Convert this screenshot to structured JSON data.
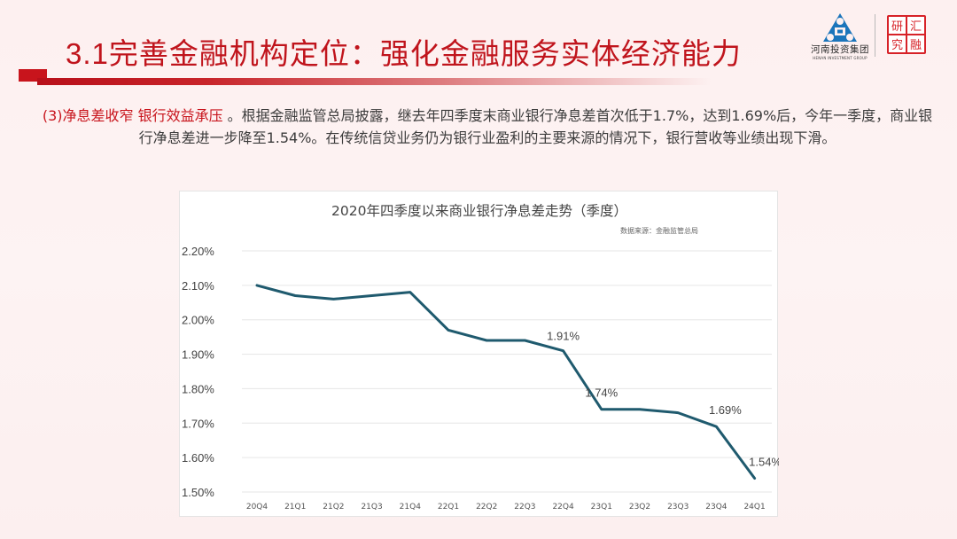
{
  "header": {
    "section_number": "3.1",
    "title": "完善金融机构定位：强化金融服务实体经济能力",
    "accent_color": "#c8141c"
  },
  "logos": {
    "company_cn": "河南投资集团",
    "company_en": "HENAN INVESTMENT GROUP",
    "seal_chars": [
      "研",
      "汇",
      "究",
      "融"
    ]
  },
  "paragraph": {
    "prefix": "(3)",
    "highlight": "净息差收窄 银行效益承压",
    "body": " 。根据金融监管总局披露，继去年四季度末商业银行净息差首次低于1.7%，达到1.69%后，今年一季度，商业银行净息差进一步降至1.54%。在传统信贷业务仍为银行业盈利的主要来源的情况下，银行营收等业绩出现下滑。"
  },
  "chart_data": {
    "type": "line",
    "title": "2020年四季度以来商业银行净息差走势（季度）",
    "subtitle": "数据来源：金融监管总局",
    "xlabel": "",
    "ylabel": "",
    "categories": [
      "20Q4",
      "21Q1",
      "21Q2",
      "21Q3",
      "21Q4",
      "22Q1",
      "22Q2",
      "22Q3",
      "22Q4",
      "23Q1",
      "23Q2",
      "23Q3",
      "23Q4",
      "24Q1"
    ],
    "series": [
      {
        "name": "商业银行净息差",
        "values": [
          2.1,
          2.07,
          2.06,
          2.07,
          2.08,
          1.97,
          1.94,
          1.94,
          1.91,
          1.74,
          1.74,
          1.73,
          1.69,
          1.54
        ],
        "color": "#1f5a6e"
      }
    ],
    "y_ticks": [
      "2.20%",
      "2.10%",
      "2.00%",
      "1.90%",
      "1.80%",
      "1.70%",
      "1.60%",
      "1.50%"
    ],
    "ylim": [
      1.5,
      2.2
    ],
    "grid": true,
    "legend": "none",
    "annotations": [
      {
        "category": "22Q4",
        "label": "1.91%"
      },
      {
        "category": "23Q1",
        "label": "1.74%"
      },
      {
        "category": "23Q4",
        "label": "1.69%"
      },
      {
        "category": "24Q1",
        "label": "1.54%"
      }
    ]
  }
}
